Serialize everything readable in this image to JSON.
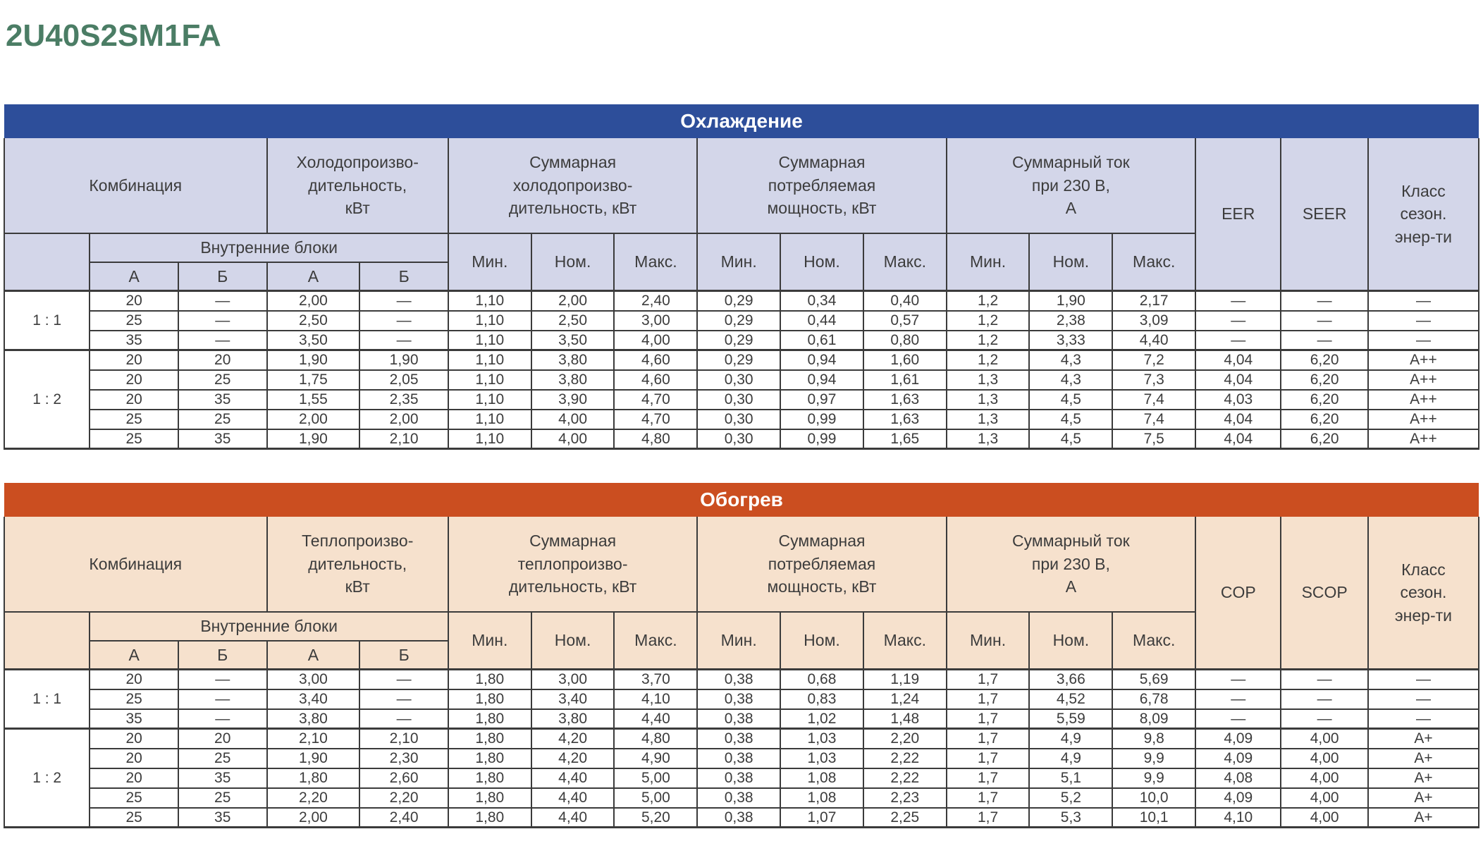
{
  "page_title": "2U40S2SM1FA",
  "colors": {
    "title_green": "#4b7d65",
    "cooling_bar": "#2d4e9a",
    "cooling_header_bg": "#d3d6e9",
    "heating_bar": "#cb4e20",
    "heating_header_bg": "#f6e1cd",
    "border": "#3b3b3b",
    "text": "#3c3c3c"
  },
  "tables": {
    "cooling": {
      "title": "Охлаждение",
      "header": {
        "combination": "Комбинация",
        "capacity": "Холодопроизво-\nдительность,\nкВт",
        "total_capacity": "Суммарная\nхолодопроизво-\nдительность, кВт",
        "power_input": "Суммарная\nпотребляемая\nмощность, кВт",
        "current": "Суммарный ток\nпри 230 В,\nА",
        "eff": "EER",
        "seasonal_eff": "SEER",
        "class": "Класс\nсезон.\nэнер-ти",
        "indoor_units": "Внутренние блоки",
        "unit_a": "А",
        "unit_b": "Б",
        "min": "Мин.",
        "nom": "Ном.",
        "max": "Макс."
      },
      "groups": [
        {
          "ratio": "1 : 1",
          "rows": [
            [
              "20",
              "—",
              "2,00",
              "—",
              "1,10",
              "2,00",
              "2,40",
              "0,29",
              "0,34",
              "0,40",
              "1,2",
              "1,90",
              "2,17",
              "—",
              "—",
              "—"
            ],
            [
              "25",
              "—",
              "2,50",
              "—",
              "1,10",
              "2,50",
              "3,00",
              "0,29",
              "0,44",
              "0,57",
              "1,2",
              "2,38",
              "3,09",
              "—",
              "—",
              "—"
            ],
            [
              "35",
              "—",
              "3,50",
              "—",
              "1,10",
              "3,50",
              "4,00",
              "0,29",
              "0,61",
              "0,80",
              "1,2",
              "3,33",
              "4,40",
              "—",
              "—",
              "—"
            ]
          ]
        },
        {
          "ratio": "1 : 2",
          "rows": [
            [
              "20",
              "20",
              "1,90",
              "1,90",
              "1,10",
              "3,80",
              "4,60",
              "0,29",
              "0,94",
              "1,60",
              "1,2",
              "4,3",
              "7,2",
              "4,04",
              "6,20",
              "A++"
            ],
            [
              "20",
              "25",
              "1,75",
              "2,05",
              "1,10",
              "3,80",
              "4,60",
              "0,30",
              "0,94",
              "1,61",
              "1,3",
              "4,3",
              "7,3",
              "4,04",
              "6,20",
              "A++"
            ],
            [
              "20",
              "35",
              "1,55",
              "2,35",
              "1,10",
              "3,90",
              "4,70",
              "0,30",
              "0,97",
              "1,63",
              "1,3",
              "4,5",
              "7,4",
              "4,03",
              "6,20",
              "A++"
            ],
            [
              "25",
              "25",
              "2,00",
              "2,00",
              "1,10",
              "4,00",
              "4,70",
              "0,30",
              "0,99",
              "1,63",
              "1,3",
              "4,5",
              "7,4",
              "4,04",
              "6,20",
              "A++"
            ],
            [
              "25",
              "35",
              "1,90",
              "2,10",
              "1,10",
              "4,00",
              "4,80",
              "0,30",
              "0,99",
              "1,65",
              "1,3",
              "4,5",
              "7,5",
              "4,04",
              "6,20",
              "A++"
            ]
          ]
        }
      ]
    },
    "heating": {
      "title": "Обогрев",
      "header": {
        "combination": "Комбинация",
        "capacity": "Теплопроизво-\nдительность,\nкВт",
        "total_capacity": "Суммарная\nтеплопроизво-\nдительность, кВт",
        "power_input": "Суммарная\nпотребляемая\nмощность, кВт",
        "current": "Суммарный ток\nпри 230 В,\nА",
        "eff": "COP",
        "seasonal_eff": "SCOP",
        "class": "Класс\nсезон.\nэнер-ти",
        "indoor_units": "Внутренние блоки",
        "unit_a": "А",
        "unit_b": "Б",
        "min": "Мин.",
        "nom": "Ном.",
        "max": "Макс."
      },
      "groups": [
        {
          "ratio": "1 : 1",
          "rows": [
            [
              "20",
              "—",
              "3,00",
              "—",
              "1,80",
              "3,00",
              "3,70",
              "0,38",
              "0,68",
              "1,19",
              "1,7",
              "3,66",
              "5,69",
              "—",
              "—",
              "—"
            ],
            [
              "25",
              "—",
              "3,40",
              "—",
              "1,80",
              "3,40",
              "4,10",
              "0,38",
              "0,83",
              "1,24",
              "1,7",
              "4,52",
              "6,78",
              "—",
              "—",
              "—"
            ],
            [
              "35",
              "—",
              "3,80",
              "—",
              "1,80",
              "3,80",
              "4,40",
              "0,38",
              "1,02",
              "1,48",
              "1,7",
              "5,59",
              "8,09",
              "—",
              "—",
              "—"
            ]
          ]
        },
        {
          "ratio": "1 : 2",
          "rows": [
            [
              "20",
              "20",
              "2,10",
              "2,10",
              "1,80",
              "4,20",
              "4,80",
              "0,38",
              "1,03",
              "2,20",
              "1,7",
              "4,9",
              "9,8",
              "4,09",
              "4,00",
              "A+"
            ],
            [
              "20",
              "25",
              "1,90",
              "2,30",
              "1,80",
              "4,20",
              "4,90",
              "0,38",
              "1,03",
              "2,22",
              "1,7",
              "4,9",
              "9,9",
              "4,09",
              "4,00",
              "A+"
            ],
            [
              "20",
              "35",
              "1,80",
              "2,60",
              "1,80",
              "4,40",
              "5,00",
              "0,38",
              "1,08",
              "2,22",
              "1,7",
              "5,1",
              "9,9",
              "4,08",
              "4,00",
              "A+"
            ],
            [
              "25",
              "25",
              "2,20",
              "2,20",
              "1,80",
              "4,40",
              "5,00",
              "0,38",
              "1,08",
              "2,23",
              "1,7",
              "5,2",
              "10,0",
              "4,09",
              "4,00",
              "A+"
            ],
            [
              "25",
              "35",
              "2,00",
              "2,40",
              "1,80",
              "4,40",
              "5,20",
              "0,38",
              "1,07",
              "2,25",
              "1,7",
              "5,3",
              "10,1",
              "4,10",
              "4,00",
              "A+"
            ]
          ]
        }
      ]
    }
  }
}
